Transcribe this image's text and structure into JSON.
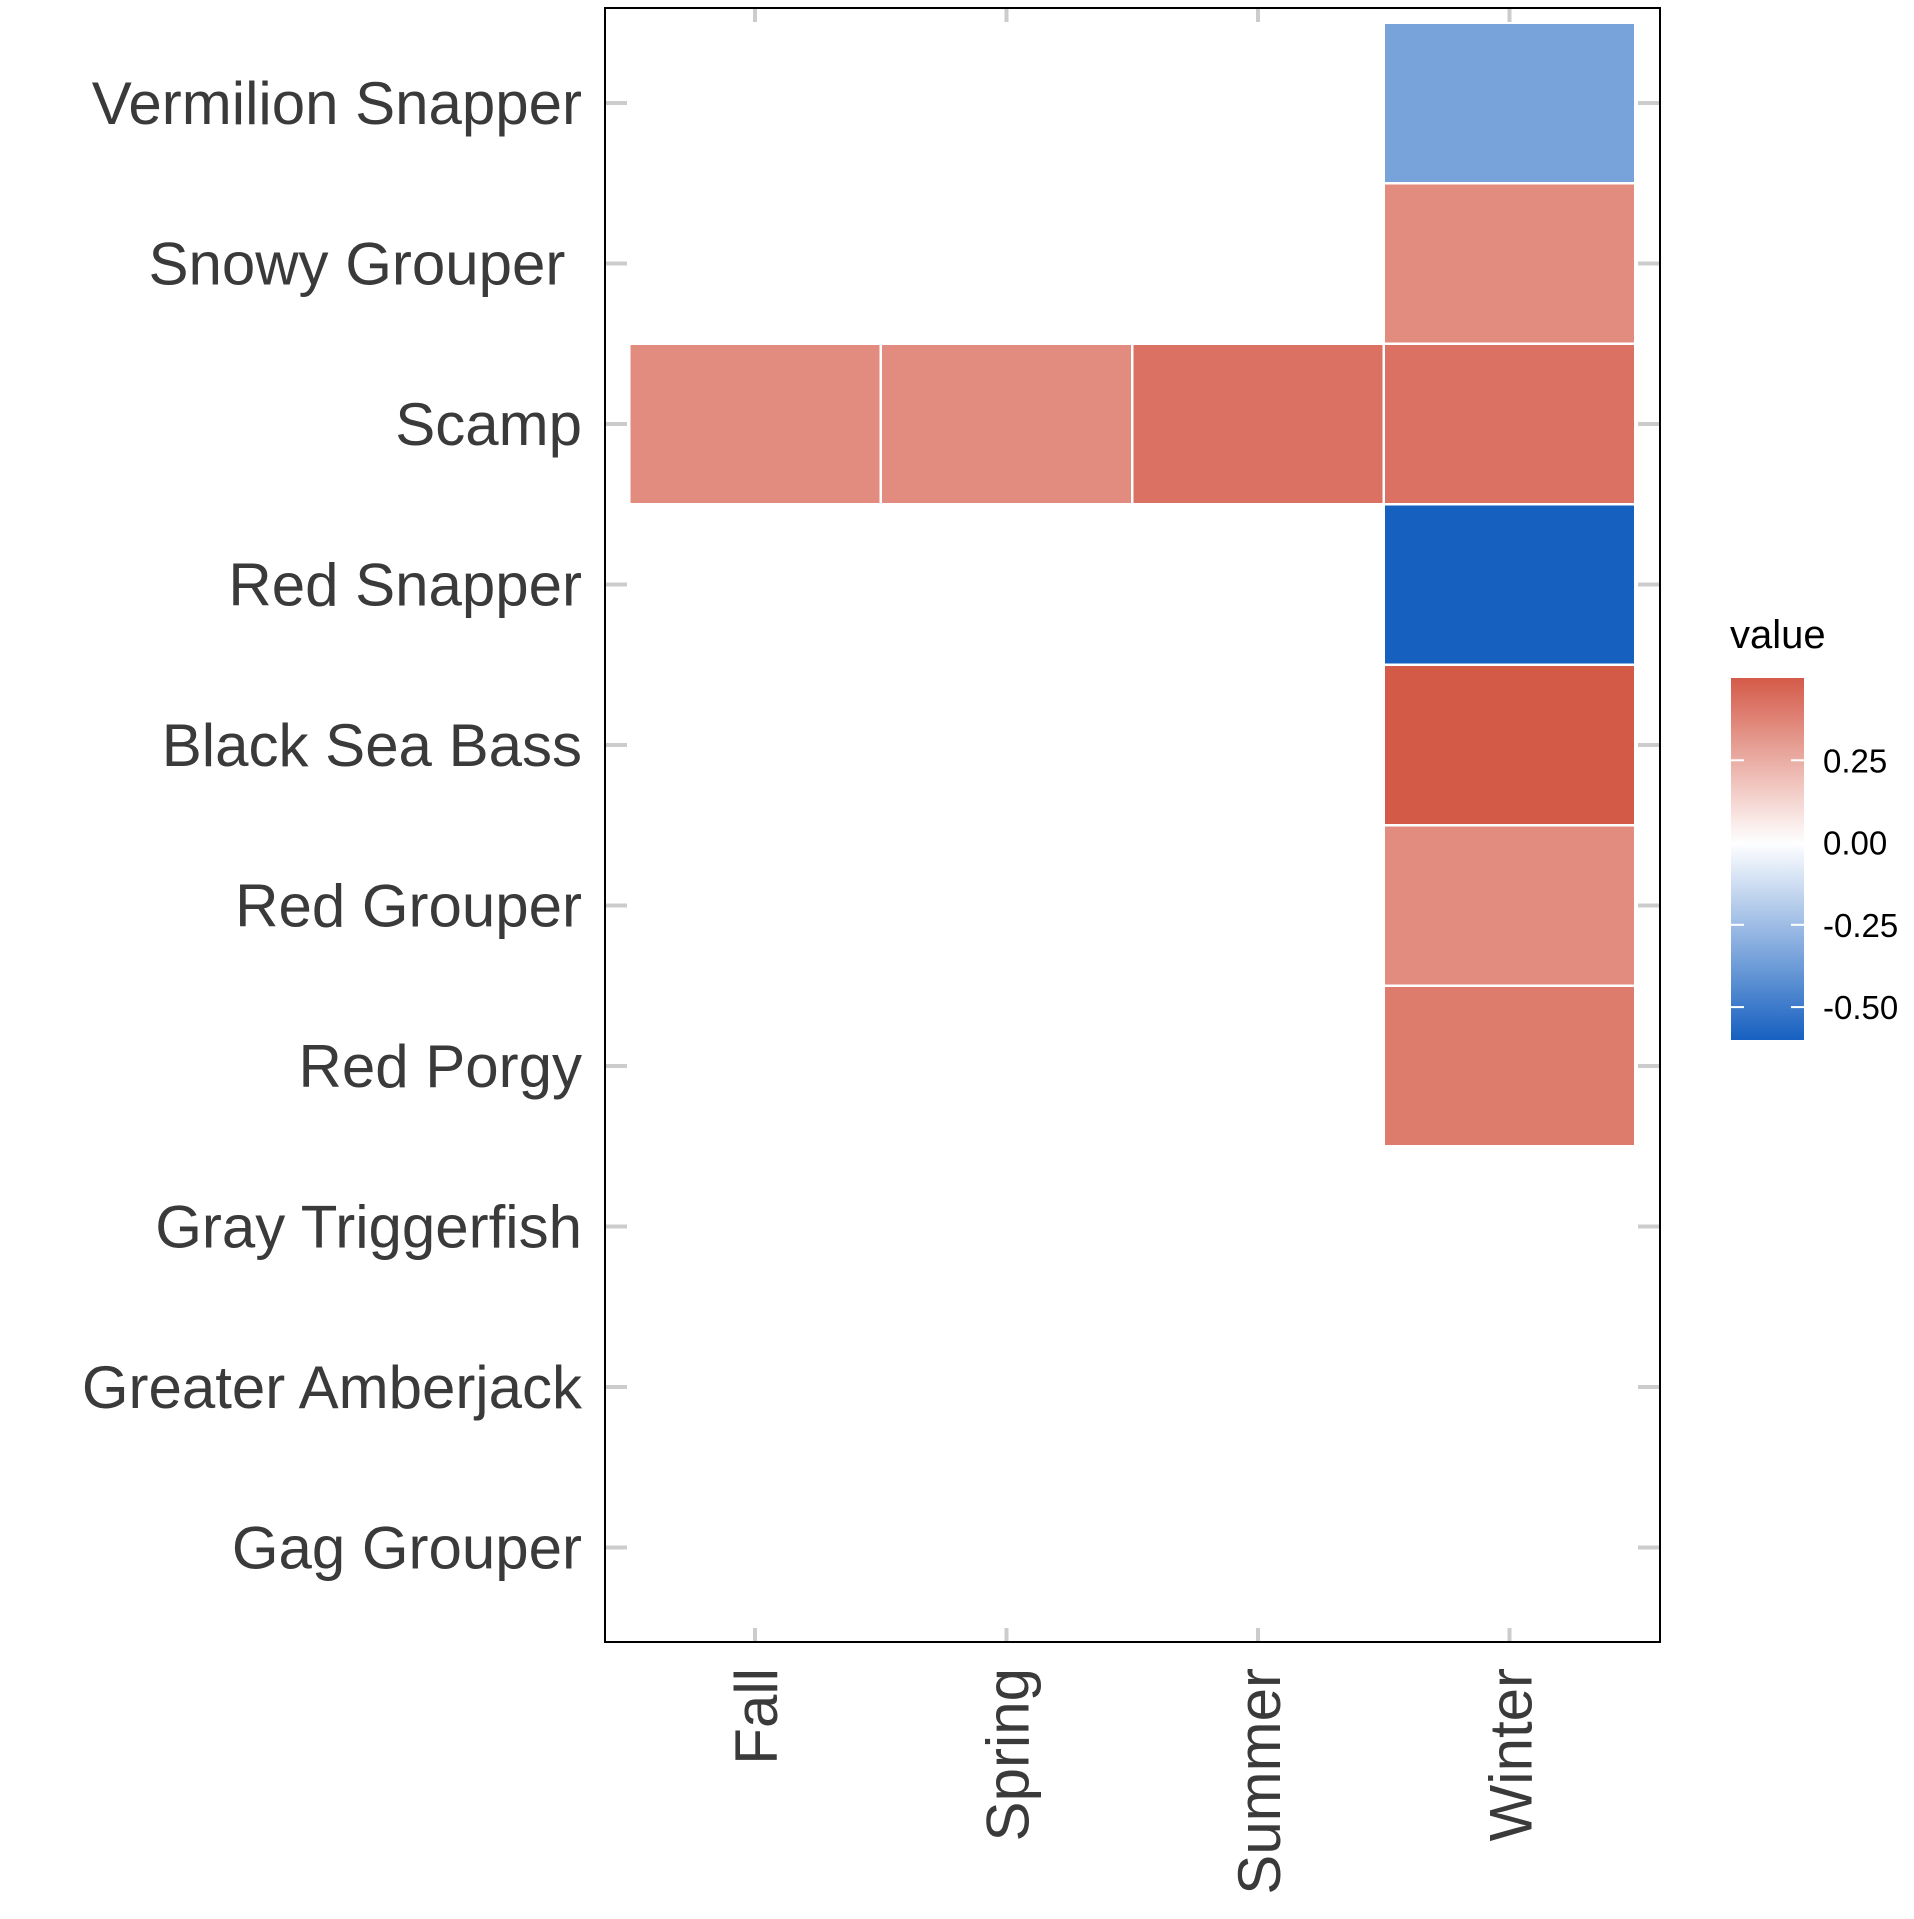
{
  "chart_data": {
    "type": "heatmap",
    "title": "",
    "xlabel": "",
    "ylabel": "",
    "x_categories": [
      "Fall",
      "Spring",
      "Summer",
      "Winter"
    ],
    "y_categories": [
      "Vermilion Snapper",
      "Snowy Grouper ",
      "Scamp",
      "Red Snapper",
      "Black Sea Bass",
      "Red Grouper",
      "Red Porgy",
      "Gray Triggerfish",
      "Greater Amberjack",
      "Gag Grouper"
    ],
    "cells": [
      {
        "x": "Winter",
        "y": "Vermilion Snapper",
        "value": -0.35
      },
      {
        "x": "Winter",
        "y": "Snowy Grouper ",
        "value": 0.35
      },
      {
        "x": "Fall",
        "y": "Scamp",
        "value": 0.35
      },
      {
        "x": "Spring",
        "y": "Scamp",
        "value": 0.35
      },
      {
        "x": "Summer",
        "y": "Scamp",
        "value": 0.43
      },
      {
        "x": "Winter",
        "y": "Scamp",
        "value": 0.43
      },
      {
        "x": "Winter",
        "y": "Red Snapper",
        "value": -0.6
      },
      {
        "x": "Winter",
        "y": "Black Sea Bass",
        "value": 0.5
      },
      {
        "x": "Winter",
        "y": "Red Grouper",
        "value": 0.35
      },
      {
        "x": "Winter",
        "y": "Red Porgy",
        "value": 0.4
      }
    ],
    "legend": {
      "title": "value",
      "position": "right",
      "ticks": [
        0.25,
        0.0,
        -0.25,
        -0.5
      ],
      "tick_labels": [
        "0.25",
        "0.00",
        "-0.25",
        "-0.50"
      ],
      "range": [
        -0.6,
        0.5
      ],
      "low_color": "#1660c0",
      "mid_color": "#ffffff",
      "high_color": "#d45a48"
    },
    "grid": false
  }
}
